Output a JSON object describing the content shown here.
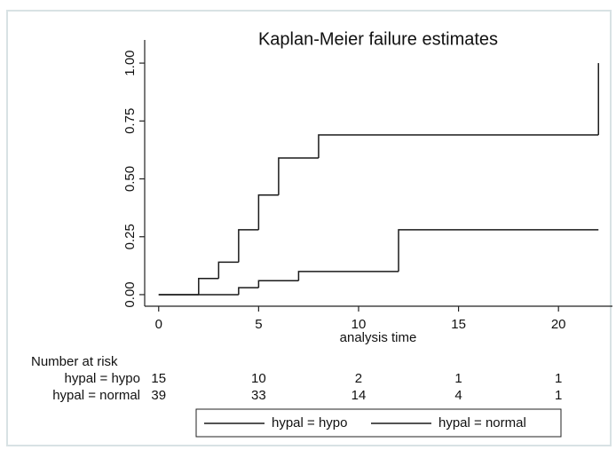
{
  "chart_data": {
    "type": "step",
    "title": "Kaplan-Meier failure estimates",
    "x_label": "analysis time",
    "xlim": [
      -0.7,
      22.7
    ],
    "xticks": [
      0,
      5,
      10,
      15,
      20
    ],
    "ylim": [
      -0.05,
      1.1
    ],
    "yticks": [
      {
        "value": 0,
        "label": "0.00"
      },
      0.25,
      {
        "value": 0.5,
        "label": "0.50"
      },
      0.75,
      {
        "value": 1,
        "label": "1.00"
      }
    ],
    "series": [
      {
        "name": "hypal = hypo",
        "color": "#1a1a1a",
        "x": [
          0,
          2,
          3,
          4,
          5,
          6,
          8,
          22
        ],
        "values": [
          0,
          0.07,
          0.14,
          0.28,
          0.43,
          0.59,
          0.69,
          1.0
        ]
      },
      {
        "name": "hypal = normal",
        "color": "#1a1a1a",
        "x": [
          0,
          4,
          5,
          7,
          12,
          22
        ],
        "values": [
          0,
          0.03,
          0.06,
          0.1,
          0.28,
          0.28
        ]
      }
    ],
    "risk_table": {
      "title": "Number at risk",
      "rows": [
        {
          "label": "hypal = hypo",
          "counts": [
            15,
            10,
            2,
            1,
            1
          ]
        },
        {
          "label": "hypal = normal",
          "counts": [
            39,
            33,
            14,
            4,
            1
          ]
        }
      ]
    }
  }
}
